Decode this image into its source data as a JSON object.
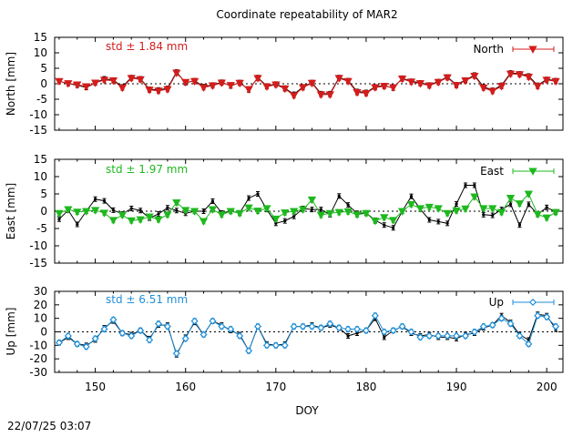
{
  "title": "Coordinate repeatability of MAR2",
  "timestamp": "22/07/25 03:07",
  "colors": {
    "north": "#d41c1c",
    "east": "#1fb81f",
    "up": "#1f8fd8",
    "raw": "#000000",
    "frame": "#000000"
  },
  "chart_data": [
    {
      "type": "line",
      "name": "north",
      "ylabel": "North [mm]",
      "legend": "North",
      "legend_position": "top-right",
      "std_label": "std ± 1.84 mm",
      "xlim": [
        145.5,
        201.8
      ],
      "ylim": [
        -15,
        15
      ],
      "yticks": [
        "15",
        "10",
        "5",
        "0",
        "-5",
        "-10",
        "-15"
      ],
      "ytick_values": [
        15,
        10,
        5,
        0,
        -5,
        -10,
        -15
      ],
      "xticks": [
        150,
        160,
        170,
        180,
        190,
        200
      ],
      "zero_line": true,
      "x": [
        146,
        147,
        148,
        149,
        150,
        151,
        152,
        153,
        154,
        155,
        156,
        157,
        158,
        159,
        160,
        161,
        162,
        163,
        164,
        165,
        166,
        167,
        168,
        169,
        170,
        171,
        172,
        173,
        174,
        175,
        176,
        177,
        178,
        179,
        180,
        181,
        182,
        183,
        184,
        185,
        186,
        187,
        188,
        189,
        190,
        191,
        192,
        193,
        194,
        195,
        196,
        197,
        198,
        199,
        200,
        201
      ],
      "series": [
        {
          "name": "North",
          "style": "triangle-down",
          "values": [
            0.8,
            0.1,
            -0.3,
            -0.9,
            0.3,
            1.2,
            1.0,
            -1.3,
            1.8,
            1.4,
            -2.0,
            -2.3,
            -1.8,
            3.5,
            0.5,
            0.8,
            -1.2,
            -0.6,
            0.3,
            -0.5,
            0.2,
            -1.8,
            1.8,
            -0.9,
            -0.3,
            -1.6,
            -3.8,
            -1.2,
            0.2,
            -3.5,
            -3.5,
            1.8,
            0.8,
            -2.8,
            -3.1,
            -1.2,
            -0.8,
            -1.2,
            1.6,
            0.6,
            0.1,
            -0.6,
            0.5,
            2.0,
            -0.5,
            1.0,
            2.5,
            -1.3,
            -2.4,
            -0.8,
            3.2,
            3.0,
            2.2,
            -0.8,
            1.2,
            0.8
          ]
        },
        {
          "name": "raw",
          "style": "dot",
          "values": [
            0.8,
            0.1,
            -0.5,
            -1.2,
            0.3,
            1.6,
            1.2,
            -1.0,
            2.0,
            1.6,
            -1.8,
            -2.0,
            -1.5,
            3.8,
            0.3,
            1.0,
            -0.9,
            -0.4,
            0.5,
            -0.7,
            0.4,
            -2.0,
            2.0,
            -0.7,
            -0.1,
            -1.4,
            -3.4,
            -1.0,
            0.4,
            -3.2,
            -3.2,
            2.0,
            1.0,
            -2.5,
            -2.8,
            -1.0,
            -0.6,
            -1.4,
            1.8,
            0.8,
            0.3,
            -0.4,
            0.7,
            2.2,
            -0.3,
            1.2,
            2.8,
            -1.0,
            -2.1,
            -0.5,
            3.5,
            3.2,
            2.5,
            -0.5,
            1.4,
            1.0
          ]
        }
      ]
    },
    {
      "type": "line",
      "name": "east",
      "ylabel": "East [mm]",
      "legend": "East",
      "legend_position": "top-right",
      "std_label": "std ± 1.97 mm",
      "xlim": [
        145.5,
        201.8
      ],
      "ylim": [
        -15,
        15
      ],
      "yticks": [
        "15",
        "10",
        "5",
        "0",
        "-5",
        "-10",
        "-15"
      ],
      "ytick_values": [
        15,
        10,
        5,
        0,
        -5,
        -10,
        -15
      ],
      "xticks": [
        150,
        160,
        170,
        180,
        190,
        200
      ],
      "zero_line": true,
      "x": [
        146,
        147,
        148,
        149,
        150,
        151,
        152,
        153,
        154,
        155,
        156,
        157,
        158,
        159,
        160,
        161,
        162,
        163,
        164,
        165,
        166,
        167,
        168,
        169,
        170,
        171,
        172,
        173,
        174,
        175,
        176,
        177,
        178,
        179,
        180,
        181,
        182,
        183,
        184,
        185,
        186,
        187,
        188,
        189,
        190,
        191,
        192,
        193,
        194,
        195,
        196,
        197,
        198,
        199,
        200,
        201
      ],
      "series": [
        {
          "name": "East",
          "style": "triangle-down",
          "values": [
            -0.6,
            0.5,
            -0.2,
            0.0,
            0.3,
            -0.5,
            -2.6,
            -1.1,
            -2.7,
            -2.4,
            -1.6,
            -2.4,
            -1.0,
            2.5,
            0.3,
            0.0,
            -2.9,
            0.5,
            -1.0,
            0.0,
            -0.6,
            1.0,
            0.1,
            0.8,
            -2.2,
            -0.4,
            0.0,
            0.5,
            3.3,
            -1.1,
            -0.6,
            -0.3,
            -0.1,
            -1.0,
            -0.6,
            -2.8,
            -1.8,
            -2.6,
            0.0,
            2.0,
            0.8,
            1.2,
            0.8,
            -0.6,
            0.2,
            0.7,
            4.2,
            0.8,
            0.8,
            -0.3,
            3.8,
            2.2,
            5.0,
            -0.9,
            -1.9,
            -0.3
          ]
        },
        {
          "name": "raw",
          "style": "dot",
          "values": [
            -2.3,
            0.3,
            -3.8,
            0.0,
            3.5,
            3.0,
            0.3,
            -0.8,
            0.8,
            0.2,
            -2.0,
            -0.8,
            1.0,
            0.2,
            -0.6,
            0.0,
            0.0,
            2.9,
            -0.5,
            0.0,
            -0.5,
            3.8,
            5.0,
            0.5,
            -3.5,
            -2.8,
            -1.5,
            0.8,
            0.5,
            0.5,
            -1.0,
            4.4,
            1.8,
            -0.6,
            -0.5,
            -2.6,
            -4.0,
            -4.8,
            0.0,
            4.3,
            0.6,
            -2.5,
            -3.0,
            -3.5,
            2.1,
            7.5,
            7.5,
            -1.0,
            -1.2,
            0.5,
            2.0,
            -4.0,
            2.0,
            -0.9,
            1.1,
            -0.2
          ]
        }
      ]
    },
    {
      "type": "line",
      "name": "up",
      "ylabel": "Up [mm]",
      "legend": "Up",
      "legend_position": "top-right",
      "std_label": "std ± 6.51 mm",
      "xlim": [
        145.5,
        201.8
      ],
      "ylim": [
        -30,
        30
      ],
      "yticks": [
        "30",
        "20",
        "10",
        "0",
        "-10",
        "-20",
        "-30"
      ],
      "ytick_values": [
        30,
        20,
        10,
        0,
        -10,
        -20,
        -30
      ],
      "xticks": [
        150,
        160,
        170,
        180,
        190,
        200
      ],
      "zero_line": true,
      "x": [
        146,
        147,
        148,
        149,
        150,
        151,
        152,
        153,
        154,
        155,
        156,
        157,
        158,
        159,
        160,
        161,
        162,
        163,
        164,
        165,
        166,
        167,
        168,
        169,
        170,
        171,
        172,
        173,
        174,
        175,
        176,
        177,
        178,
        179,
        180,
        181,
        182,
        183,
        184,
        185,
        186,
        187,
        188,
        189,
        190,
        191,
        192,
        193,
        194,
        195,
        196,
        197,
        198,
        199,
        200,
        201
      ],
      "series": [
        {
          "name": "Up",
          "style": "diamond",
          "values": [
            -8.0,
            -3.0,
            -9.0,
            -11.0,
            -5.0,
            2.0,
            9.0,
            -1.0,
            -3.0,
            1.0,
            -6.0,
            6.0,
            4.0,
            -16.0,
            -5.0,
            8.0,
            -2.0,
            8.0,
            4.0,
            2.0,
            -3.0,
            -14.0,
            4.0,
            -10.0,
            -10.0,
            -10.0,
            4.0,
            4.0,
            4.0,
            3.0,
            6.0,
            3.0,
            2.0,
            2.0,
            1.0,
            12.0,
            0.0,
            1.0,
            4.0,
            0.0,
            -4.0,
            -3.0,
            -3.0,
            -3.0,
            -3.0,
            -3.0,
            0.0,
            4.0,
            5.0,
            10.0,
            6.0,
            -3.0,
            -9.0,
            12.0,
            11.0,
            4.0
          ]
        },
        {
          "name": "raw",
          "style": "dot",
          "values": [
            -8.0,
            -4.0,
            -9.0,
            -10.0,
            -6.0,
            3.0,
            8.0,
            -1.0,
            -2.0,
            1.0,
            -5.0,
            5.0,
            5.0,
            -17.0,
            -4.0,
            7.0,
            -2.0,
            8.0,
            5.0,
            1.0,
            -2.0,
            -14.0,
            4.0,
            -9.0,
            -10.0,
            -9.0,
            4.0,
            4.0,
            5.0,
            3.0,
            5.0,
            3.0,
            -3.0,
            -1.0,
            1.0,
            10.0,
            -4.0,
            1.0,
            4.0,
            -1.0,
            -3.0,
            -2.0,
            -4.0,
            -4.0,
            -5.0,
            -2.0,
            -1.0,
            3.0,
            5.0,
            12.0,
            7.0,
            -2.0,
            -6.0,
            13.0,
            12.0,
            2.0
          ]
        }
      ]
    }
  ],
  "xlabel": "DOY",
  "xtick_labels": [
    "150",
    "160",
    "170",
    "180",
    "190",
    "200"
  ]
}
